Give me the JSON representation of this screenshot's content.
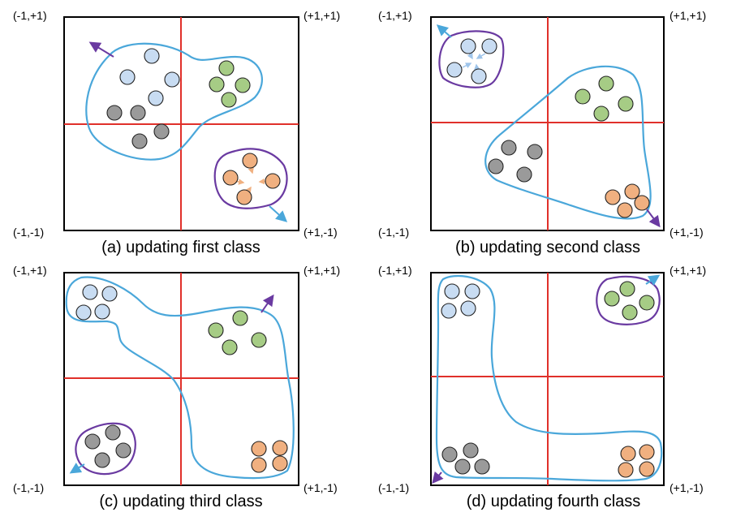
{
  "colors": {
    "blue": "#c8dcf2",
    "green": "#a6cc85",
    "gray": "#9a9a9a",
    "orange": "#f0b080",
    "axis": "#e0302a",
    "blob": "#4aa7da",
    "group": "#6a3aa1"
  },
  "corner_labels": {
    "top_left": "(-1,+1)",
    "top_right": "(+1,+1)",
    "bottom_left": "(-1,-1)",
    "bottom_right": "(+1,-1)"
  },
  "panels": [
    {
      "caption": "(a) updating first class"
    },
    {
      "caption": "(b) updating second class"
    },
    {
      "caption": "(c) updating third class"
    },
    {
      "caption": "(d) updating fourth class"
    }
  ]
}
